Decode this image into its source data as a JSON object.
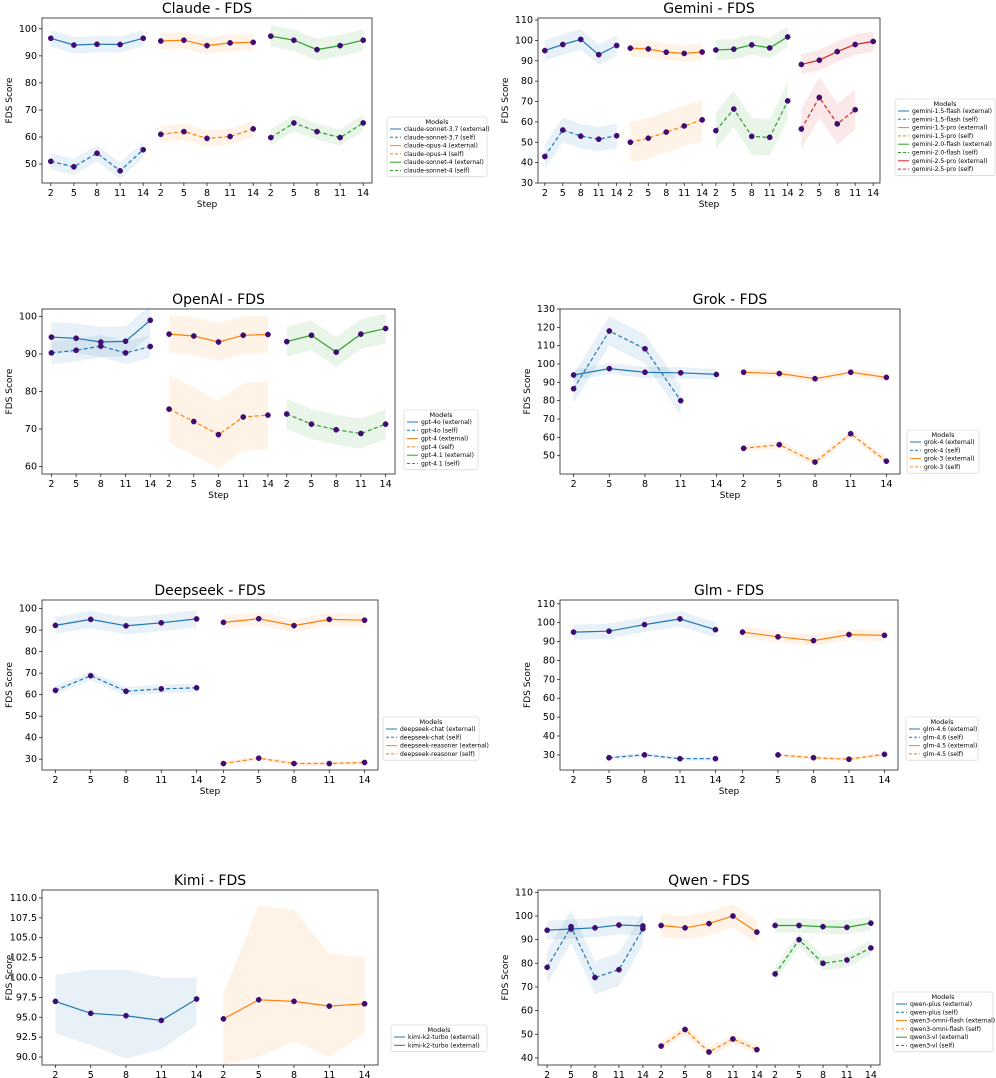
{
  "chart_data": [
    {
      "type": "line",
      "title": "Claude - FDS",
      "xlabel": "Step",
      "ylabel": "FDS Score",
      "ylim": [
        43,
        104
      ],
      "yticks": [
        50,
        60,
        70,
        80,
        90,
        100
      ],
      "step_ticks": [
        "2",
        "5",
        "8",
        "11",
        "14"
      ],
      "legend_title": "Models",
      "legend": [
        "claude-sonnet-3.7 (external)",
        "claude-sonnet-3.7 (self)",
        "claude-opus-4 (external)",
        "claude-opus-4 (self)",
        "claude-sonnet-4 (external)",
        "claude-sonnet-4 (self)"
      ],
      "groups": [
        {
          "color": "#1f77b4",
          "external": [
            96.5,
            94,
            94.3,
            94.2,
            96.5
          ],
          "self": [
            51,
            49,
            54,
            47.5,
            55.3
          ],
          "band_external": 3,
          "band_self": 3
        },
        {
          "color": "#ff7f0e",
          "external": [
            95.5,
            95.8,
            93.8,
            94.8,
            95
          ],
          "self": [
            61,
            62,
            59.5,
            60.2,
            63
          ],
          "band_external": 3,
          "band_self": 3
        },
        {
          "color": "#2ca02c",
          "external": [
            97.3,
            95.8,
            92.3,
            93.8,
            95.8
          ],
          "self": [
            59.8,
            65.2,
            62,
            59.8,
            65.2
          ],
          "band_external": 4,
          "band_self": 3
        }
      ]
    },
    {
      "type": "line",
      "title": "Gemini - FDS",
      "xlabel": "Step",
      "ylabel": "FDS Score",
      "ylim": [
        30,
        111
      ],
      "yticks": [
        30,
        40,
        50,
        60,
        70,
        80,
        90,
        100,
        110
      ],
      "step_ticks": [
        "2",
        "5",
        "8",
        "11",
        "14"
      ],
      "legend_title": "Models",
      "legend": [
        "gemini-1.5-flash (external)",
        "gemini-1.5-flash (self)",
        "gemini-1.5-pro (external)",
        "gemini-1.5-pro (self)",
        "gemini-2.0-flash (external)",
        "gemini-2.0-flash (self)",
        "gemini-2.5-pro (external)",
        "gemini-2.5-pro (self)"
      ],
      "groups": [
        {
          "color": "#1f77b4",
          "external": [
            95,
            98,
            100.5,
            93,
            97.5
          ],
          "self": [
            43,
            56,
            53,
            51.5,
            53.2
          ],
          "band_external": 5,
          "band_self": 6
        },
        {
          "color": "#ff7f0e",
          "external": [
            96.2,
            95.8,
            94.2,
            93.6,
            94.3
          ],
          "self": [
            50,
            52,
            55,
            58,
            61
          ],
          "band_external": 4,
          "band_self": 10
        },
        {
          "color": "#2ca02c",
          "external": [
            95.3,
            95.7,
            97.8,
            96.3,
            101.7
          ],
          "self": [
            55.7,
            66.3,
            52.9,
            52.4,
            70.3
          ],
          "band_external": 5,
          "band_self": 9
        },
        {
          "color": "#d62728",
          "external": [
            88.2,
            90.3,
            94.5,
            98,
            99.5
          ],
          "self": [
            56.5,
            72,
            59,
            66
          ],
          "band_external": 5,
          "band_self": 10
        }
      ]
    },
    {
      "type": "line",
      "title": "OpenAI - FDS",
      "xlabel": "Step",
      "ylabel": "FDS Score",
      "ylim": [
        58,
        102
      ],
      "yticks": [
        60,
        70,
        80,
        90,
        100
      ],
      "step_ticks": [
        "2",
        "5",
        "8",
        "11",
        "14"
      ],
      "legend_title": "Models",
      "legend": [
        "gpt-4o (external)",
        "gpt-4o (self)",
        "gpt-4 (external)",
        "gpt-4 (self)",
        "gpt-4.1 (external)",
        "gpt-4.1 (self)"
      ],
      "groups": [
        {
          "color": "#1f77b4",
          "external": [
            94.5,
            94.2,
            93.2,
            93.4,
            99
          ],
          "self": [
            90.3,
            91,
            92.1,
            90.3,
            92
          ],
          "band_external": 4,
          "band_self": 3
        },
        {
          "color": "#ff7f0e",
          "external": [
            95.3,
            94.8,
            93.2,
            95,
            95.2
          ],
          "self": [
            75.3,
            72,
            68.5,
            73.2,
            73.7
          ],
          "band_external": 5,
          "band_self": 9
        },
        {
          "color": "#2ca02c",
          "external": [
            93.3,
            95,
            90.5,
            95.3,
            96.8
          ],
          "self": [
            74,
            71.3,
            69.8,
            68.8,
            71.3
          ],
          "band_external": 4,
          "band_self": 4
        }
      ]
    },
    {
      "type": "line",
      "title": "Grok - FDS",
      "xlabel": "Step",
      "ylabel": "FDS Score",
      "ylim": [
        40,
        130
      ],
      "yticks": [
        50,
        60,
        70,
        80,
        90,
        100,
        110,
        120,
        130
      ],
      "step_ticks": [
        "2",
        "5",
        "8",
        "11",
        "14"
      ],
      "legend_title": "Models",
      "legend": [
        "grok-4 (external)",
        "grok-4 (self)",
        "grok-3 (external)",
        "grok-3 (self)"
      ],
      "groups": [
        {
          "color": "#1f77b4",
          "external": [
            94,
            97.5,
            95.5,
            95.2,
            94.3
          ],
          "self": [
            86.5,
            118,
            108.3,
            80
          ],
          "band_external": 3,
          "band_self": 8
        },
        {
          "color": "#ff7f0e",
          "external": [
            95.5,
            94.8,
            92,
            95.5,
            92.7
          ],
          "self": [
            54,
            56,
            46.5,
            62,
            47
          ],
          "band_external": 2,
          "band_self": 2
        }
      ]
    },
    {
      "type": "line",
      "title": "Deepseek - FDS",
      "xlabel": "Step",
      "ylabel": "FDS Score",
      "ylim": [
        25,
        104
      ],
      "yticks": [
        30,
        40,
        50,
        60,
        70,
        80,
        90,
        100
      ],
      "step_ticks": [
        "2",
        "5",
        "8",
        "11",
        "14"
      ],
      "legend_title": "Models",
      "legend": [
        "deepseek-chat (external)",
        "deepseek-chat (self)",
        "deepseek-reasoner (external)",
        "deepseek-reasoner (self)"
      ],
      "groups": [
        {
          "color": "#1f77b4",
          "external": [
            92.2,
            95,
            92,
            93.4,
            95.2
          ],
          "self": [
            62,
            68.8,
            61.6,
            62.7,
            63.2
          ],
          "band_external": 4,
          "band_self": 2
        },
        {
          "color": "#ff7f0e",
          "external": [
            93.6,
            95.3,
            92.1,
            95,
            94.6
          ],
          "self": [
            28,
            30.5,
            28,
            28,
            28.5
          ],
          "band_external": 3,
          "band_self": 1
        }
      ]
    },
    {
      "type": "line",
      "title": "Glm - FDS",
      "xlabel": "Step",
      "ylabel": "FDS Score",
      "ylim": [
        22,
        112
      ],
      "yticks": [
        30,
        40,
        50,
        60,
        70,
        80,
        90,
        100,
        110
      ],
      "step_ticks": [
        "2",
        "5",
        "8",
        "11",
        "14"
      ],
      "legend_title": "Models",
      "legend": [
        "glm-4.6 (external)",
        "glm-4.6 (self)",
        "glm-4.5 (external)",
        "glm-4.5 (self)"
      ],
      "groups": [
        {
          "color": "#1f77b4",
          "external": [
            95,
            95.5,
            99,
            102,
            96.3
          ],
          "self": [
            null,
            28.5,
            30,
            28,
            28
          ],
          "band_external": 4,
          "band_self": 1
        },
        {
          "color": "#ff7f0e",
          "external": [
            95,
            92.5,
            90.5,
            93.7,
            93.3
          ],
          "self": [
            null,
            30,
            28.5,
            27.7,
            30.3
          ],
          "band_external": 3,
          "band_self": 1
        }
      ]
    },
    {
      "type": "line",
      "title": "Kimi - FDS",
      "xlabel": "Step",
      "ylabel": "FDS Score",
      "ylim": [
        89,
        111
      ],
      "yticks": [
        90.0,
        92.5,
        95.0,
        97.5,
        100.0,
        102.5,
        105.0,
        107.5,
        110.0
      ],
      "step_ticks": [
        "2",
        "5",
        "8",
        "11",
        "14"
      ],
      "legend_title": "Models",
      "legend": [
        "kimi-k2-turbo (external)",
        "kimi-k2-turbo (external)"
      ],
      "groups": [
        {
          "color": "#1f77b4",
          "external": [
            97,
            95.5,
            95.2,
            94.6,
            97.3
          ],
          "band": [
            [
              93,
              100.3
            ],
            [
              91.5,
              101
            ],
            [
              89.8,
              101
            ],
            [
              91,
              100
            ],
            [
              94,
              100
            ]
          ]
        },
        {
          "color": "#ff7f0e",
          "external": [
            94.8,
            97.2,
            97,
            96.4,
            96.7
          ],
          "band": [
            [
              89,
              98
            ],
            [
              90,
              109
            ],
            [
              92,
              108.5
            ],
            [
              90,
              103
            ],
            [
              93,
              102.5
            ]
          ]
        }
      ]
    },
    {
      "type": "line",
      "title": "Qwen - FDS",
      "xlabel": "Step",
      "ylabel": "FDS Score",
      "ylim": [
        37,
        111
      ],
      "yticks": [
        40,
        50,
        60,
        70,
        80,
        90,
        100,
        110
      ],
      "step_ticks": [
        "2",
        "5",
        "8",
        "11",
        "14"
      ],
      "legend_title": "Models",
      "legend": [
        "qwen-plus (external)",
        "qwen-plus (self)",
        "qwen3-omni-flash (external)",
        "qwen3-omni-flash (self)",
        "qwen3-vl (external)",
        "qwen3-vl (self)"
      ],
      "groups": [
        {
          "color": "#1f77b4",
          "external": [
            94,
            94.5,
            95,
            96.2,
            95.8
          ],
          "self": [
            78.3,
            95.5,
            74,
            77.3,
            94.6
          ],
          "band_external": 4,
          "band_self": 7
        },
        {
          "color": "#ff7f0e",
          "external": [
            96,
            95,
            96.8,
            100,
            93.2
          ],
          "self": [
            45,
            52,
            42.5,
            48,
            43.5
          ],
          "band_external": 5,
          "band_self": 2
        },
        {
          "color": "#2ca02c",
          "external": [
            96,
            96,
            95.5,
            95.2,
            97
          ],
          "self": [
            75.5,
            90,
            80,
            81.4,
            86.5
          ],
          "band_external": 3,
          "band_self": 3
        }
      ]
    }
  ]
}
